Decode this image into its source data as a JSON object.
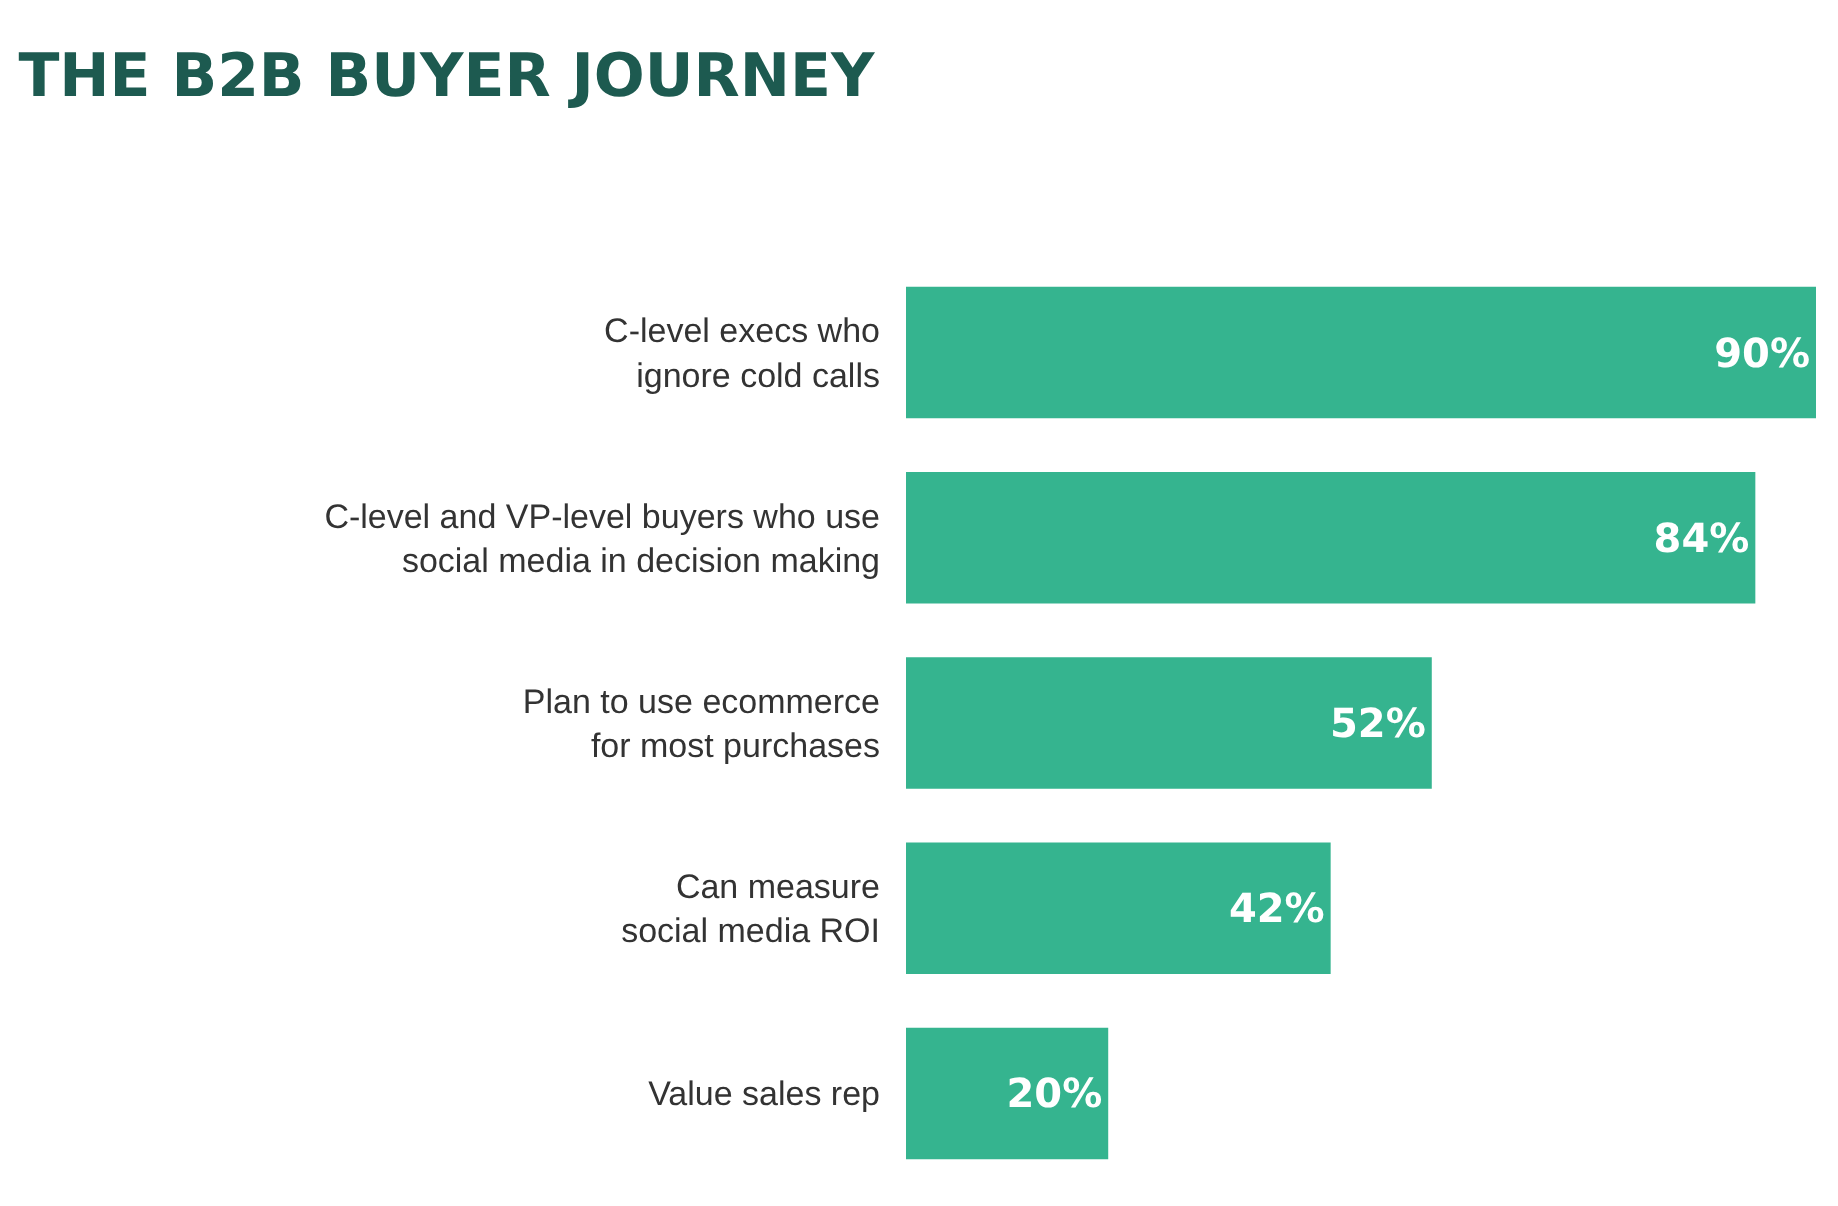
{
  "chart_data": {
    "type": "bar",
    "title": "THE B2B BUYER JOURNEY",
    "orientation": "horizontal",
    "categories": [
      "C-level execs who ignore cold calls",
      "C-level and VP-level buyers who use social media in decision making",
      "Plan to use ecommerce for most purchases",
      "Can measure social media ROI",
      "Value sales rep"
    ],
    "values": [
      90,
      84,
      52,
      42,
      20
    ],
    "value_labels": [
      "90%",
      "84%",
      "52%",
      "42%",
      "20%"
    ],
    "color": "#35b48f",
    "xlim": [
      0,
      90
    ],
    "tick_labels": "y"
  }
}
